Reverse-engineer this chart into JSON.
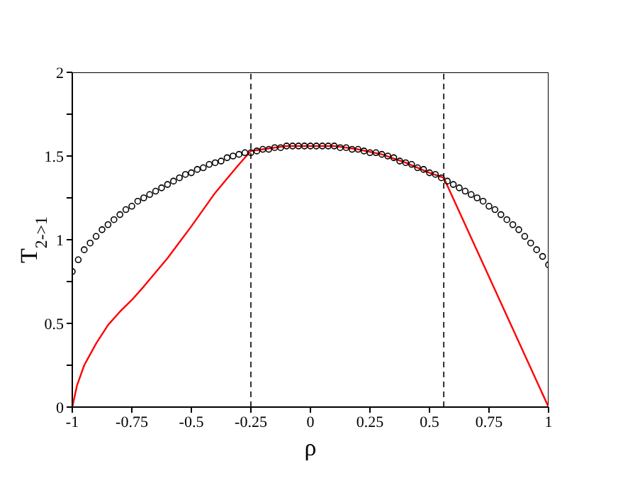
{
  "chart_data": {
    "type": "scatter",
    "xlabel": "ρ",
    "ylabel": "T$_{2->1}$",
    "xlim": [
      -1,
      1
    ],
    "ylim": [
      0,
      2
    ],
    "xticks": [
      -1,
      -0.75,
      -0.5,
      -0.25,
      0,
      0.25,
      0.5,
      0.75,
      1
    ],
    "yticks": [
      0,
      {
        "value": 0.25,
        "label": null
      },
      0.5,
      {
        "value": 0.75,
        "label": null
      },
      1,
      {
        "value": 1.25,
        "label": null
      },
      1.5,
      {
        "value": 1.75,
        "label": null
      },
      2
    ],
    "grid": false,
    "legend": false,
    "ref_lines": [
      {
        "axis": "x",
        "value": -0.25,
        "color": "#000000",
        "line_style": "dashed"
      },
      {
        "axis": "x",
        "value": 0.56,
        "color": "#000000",
        "line_style": "dashed"
      }
    ],
    "series": [
      {
        "marker": "circle",
        "color": "#000000",
        "x": [
          -1,
          -0.975,
          -0.95,
          -0.925,
          -0.9,
          -0.875,
          -0.85,
          -0.825,
          -0.8,
          -0.775,
          -0.75,
          -0.725,
          -0.7,
          -0.675,
          -0.65,
          -0.625,
          -0.6,
          -0.575,
          -0.55,
          -0.525,
          -0.5,
          -0.475,
          -0.45,
          -0.425,
          -0.4,
          -0.375,
          -0.35,
          -0.325,
          -0.3,
          -0.275,
          -0.25,
          -0.225,
          -0.2,
          -0.175,
          -0.15,
          -0.125,
          -0.1,
          -0.075,
          -0.05,
          -0.025,
          0,
          0.025,
          0.05,
          0.075,
          0.1,
          0.125,
          0.15,
          0.175,
          0.2,
          0.225,
          0.25,
          0.275,
          0.3,
          0.325,
          0.35,
          0.375,
          0.4,
          0.425,
          0.45,
          0.475,
          0.5,
          0.525,
          0.55,
          0.575,
          0.6,
          0.625,
          0.65,
          0.675,
          0.7,
          0.725,
          0.75,
          0.775,
          0.8,
          0.825,
          0.85,
          0.875,
          0.9,
          0.925,
          0.95,
          0.975,
          1
        ],
        "values": [
          0.81,
          0.88,
          0.94,
          0.98,
          1.02,
          1.06,
          1.09,
          1.12,
          1.15,
          1.18,
          1.2,
          1.23,
          1.25,
          1.27,
          1.29,
          1.31,
          1.33,
          1.35,
          1.37,
          1.39,
          1.4,
          1.42,
          1.43,
          1.45,
          1.46,
          1.47,
          1.49,
          1.5,
          1.51,
          1.52,
          1.52,
          1.53,
          1.54,
          1.54,
          1.55,
          1.55,
          1.56,
          1.56,
          1.56,
          1.56,
          1.56,
          1.56,
          1.56,
          1.56,
          1.56,
          1.55,
          1.55,
          1.54,
          1.54,
          1.53,
          1.52,
          1.52,
          1.51,
          1.5,
          1.49,
          1.47,
          1.46,
          1.45,
          1.43,
          1.42,
          1.4,
          1.39,
          1.37,
          1.35,
          1.33,
          1.31,
          1.29,
          1.27,
          1.25,
          1.23,
          1.2,
          1.18,
          1.15,
          1.12,
          1.09,
          1.06,
          1.02,
          0.98,
          0.94,
          0.9,
          0.85
        ]
      },
      {
        "type": "line",
        "marker": "none",
        "line_style": "solid",
        "color": "#ff0000",
        "x": [
          -1,
          -0.98,
          -0.95,
          -0.9,
          -0.85,
          -0.8,
          -0.75,
          -0.7,
          -0.6,
          -0.5,
          -0.4,
          -0.3,
          -0.25,
          -0.2,
          -0.1,
          0,
          0.1,
          0.2,
          0.3,
          0.4,
          0.5,
          0.56,
          1
        ],
        "values": [
          0,
          0.13,
          0.25,
          0.38,
          0.49,
          0.57,
          0.64,
          0.72,
          0.89,
          1.08,
          1.28,
          1.45,
          1.53,
          1.54,
          1.56,
          1.56,
          1.56,
          1.54,
          1.51,
          1.46,
          1.4,
          1.37,
          0
        ]
      }
    ]
  }
}
